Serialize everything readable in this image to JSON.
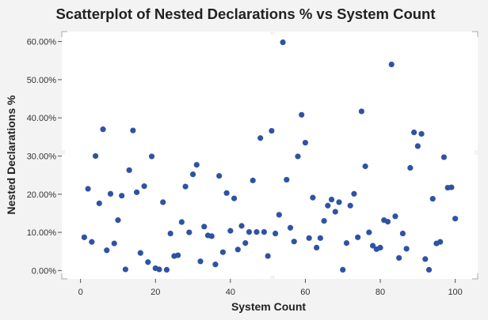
{
  "chart_data": {
    "type": "scatter",
    "title": "Scatterplot of Nested Declarations % vs System Count",
    "xlabel": "System Count",
    "ylabel": "Nested Declarations %",
    "xlim": [
      -5,
      106
    ],
    "ylim": [
      -2.2,
      62.6
    ],
    "xticks": [
      0,
      20,
      40,
      60,
      80,
      100
    ],
    "xtick_labels": [
      "0",
      "20",
      "40",
      "60",
      "80",
      "100"
    ],
    "yticks": [
      0,
      10,
      20,
      30,
      40,
      50,
      60
    ],
    "ytick_labels": [
      "0.00%",
      "10.00%",
      "20.00%",
      "30.00%",
      "40.00%",
      "50.00%",
      "60.00%"
    ],
    "grid": false,
    "marker_color": "#2e53a4",
    "points": [
      [
        1,
        8.7
      ],
      [
        2,
        21.4
      ],
      [
        3,
        7.5
      ],
      [
        4,
        30.0
      ],
      [
        5,
        17.6
      ],
      [
        6,
        37.0
      ],
      [
        7,
        5.3
      ],
      [
        8,
        20.1
      ],
      [
        9,
        7.1
      ],
      [
        10,
        13.2
      ],
      [
        11,
        19.6
      ],
      [
        12,
        0.3
      ],
      [
        13,
        26.3
      ],
      [
        14,
        36.7
      ],
      [
        15,
        20.5
      ],
      [
        16,
        4.6
      ],
      [
        17,
        22.1
      ],
      [
        18,
        2.2
      ],
      [
        19,
        29.9
      ],
      [
        20,
        0.6
      ],
      [
        21,
        0.3
      ],
      [
        22,
        17.9
      ],
      [
        23,
        0.2
      ],
      [
        24,
        9.7
      ],
      [
        25,
        3.8
      ],
      [
        26,
        4.0
      ],
      [
        27,
        12.7
      ],
      [
        28,
        22.0
      ],
      [
        29,
        10.0
      ],
      [
        30,
        25.2
      ],
      [
        31,
        27.7
      ],
      [
        32,
        2.4
      ],
      [
        33,
        11.5
      ],
      [
        34,
        9.2
      ],
      [
        35,
        9.0
      ],
      [
        36,
        1.6
      ],
      [
        37,
        24.8
      ],
      [
        38,
        4.8
      ],
      [
        39,
        20.3
      ],
      [
        40,
        10.4
      ],
      [
        41,
        18.9
      ],
      [
        42,
        5.5
      ],
      [
        43,
        11.7
      ],
      [
        44,
        7.2
      ],
      [
        45,
        10.1
      ],
      [
        46,
        23.6
      ],
      [
        47,
        10.1
      ],
      [
        48,
        34.7
      ],
      [
        49,
        10.1
      ],
      [
        50,
        3.8
      ],
      [
        51,
        36.6
      ],
      [
        52,
        9.7
      ],
      [
        53,
        14.6
      ],
      [
        54,
        59.8
      ],
      [
        55,
        23.8
      ],
      [
        56,
        11.2
      ],
      [
        57,
        7.6
      ],
      [
        58,
        29.9
      ],
      [
        59,
        40.8
      ],
      [
        60,
        33.5
      ],
      [
        61,
        8.5
      ],
      [
        62,
        19.1
      ],
      [
        63,
        6.0
      ],
      [
        64,
        8.5
      ],
      [
        65,
        13.0
      ],
      [
        66,
        17.0
      ],
      [
        67,
        18.6
      ],
      [
        68,
        15.4
      ],
      [
        69,
        17.9
      ],
      [
        70,
        0.2
      ],
      [
        71,
        7.2
      ],
      [
        72,
        17.0
      ],
      [
        73,
        20.1
      ],
      [
        74,
        8.7
      ],
      [
        75,
        41.7
      ],
      [
        76,
        27.3
      ],
      [
        77,
        10.0
      ],
      [
        78,
        6.5
      ],
      [
        79,
        5.6
      ],
      [
        80,
        6.0
      ],
      [
        81,
        13.2
      ],
      [
        82,
        12.8
      ],
      [
        83,
        54.0
      ],
      [
        84,
        14.2
      ],
      [
        85,
        3.3
      ],
      [
        86,
        9.7
      ],
      [
        87,
        5.7
      ],
      [
        88,
        26.9
      ],
      [
        89,
        36.2
      ],
      [
        90,
        32.6
      ],
      [
        91,
        35.8
      ],
      [
        92,
        3.0
      ],
      [
        93,
        0.2
      ],
      [
        94,
        18.8
      ],
      [
        95,
        7.1
      ],
      [
        96,
        7.5
      ],
      [
        97,
        29.7
      ],
      [
        98,
        21.7
      ],
      [
        99,
        21.8
      ],
      [
        100,
        13.6
      ]
    ]
  }
}
